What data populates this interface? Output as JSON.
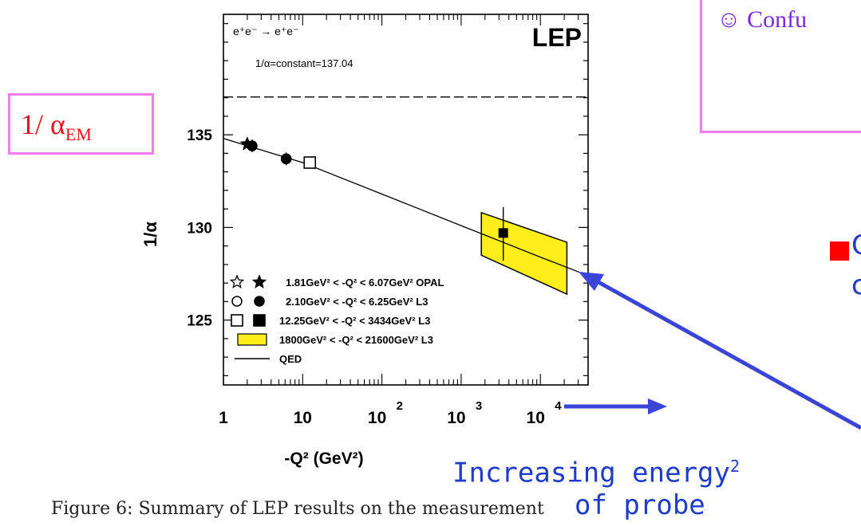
{
  "chart_data": {
    "type": "scatter",
    "title": "",
    "process_label": "e⁺e⁻ → e⁺e⁻",
    "experiment_label": "LEP",
    "xlabel": "-Q² (GeV²)",
    "ylabel": "1/α",
    "x_scale": "log",
    "xlim": [
      1,
      40000
    ],
    "ylim": [
      121.5,
      141.5
    ],
    "x_ticks": [
      {
        "value": 1,
        "label": "1"
      },
      {
        "value": 10,
        "label": "10"
      },
      {
        "value": 100,
        "label": "10",
        "exp": "2"
      },
      {
        "value": 1000,
        "label": "10",
        "exp": "3"
      },
      {
        "value": 10000,
        "label": "10",
        "exp": "4"
      }
    ],
    "y_ticks": [
      125,
      130,
      135
    ],
    "constant_line": {
      "value": 137.04,
      "label": "1/α=constant=137.04"
    },
    "qed_curve": {
      "name": "QED",
      "x": [
        1,
        10,
        100,
        1000,
        10000,
        40000
      ],
      "y": [
        134.8,
        133.5,
        131.8,
        130.1,
        128.4,
        127.4
      ]
    },
    "series": [
      {
        "name": "1.81GeV² < -Q² < 6.07GeV² OPAL",
        "marker": "star",
        "points": [
          {
            "x": 2.0,
            "y": 134.5
          }
        ]
      },
      {
        "name": "2.10GeV² < -Q² < 6.25GeV² L3",
        "marker": "circle",
        "points": [
          {
            "x": 2.3,
            "y": 134.4
          },
          {
            "x": 6.2,
            "y": 133.7
          }
        ]
      },
      {
        "name": "12.25GeV² < -Q² < 3434GeV² L3",
        "marker": "square",
        "points": [
          {
            "x": 12.3,
            "y": 133.5
          }
        ]
      },
      {
        "name": "1800GeV² < -Q² < 21600GeV² L3",
        "marker": "band",
        "points": [
          {
            "x": 3400,
            "y": 129.7
          }
        ]
      }
    ],
    "band": {
      "x_low": 1800,
      "x_high": 21600,
      "left_y": [
        128.5,
        130.8
      ],
      "right_y": [
        126.4,
        129.2
      ],
      "color": "#ffee1a"
    },
    "legend": [
      {
        "open": "star",
        "filled": "star",
        "text": "1.81GeV² < -Q² < 6.07GeV² OPAL"
      },
      {
        "open": "circle",
        "filled": "circle",
        "text": "2.10GeV² < -Q² < 6.25GeV² L3"
      },
      {
        "open": "square",
        "filled": "square",
        "text": "12.25GeV² < -Q² < 3434GeV² L3"
      },
      {
        "open": "band",
        "text": "1800GeV² < -Q² < 21600GeV² L3"
      },
      {
        "open": "line",
        "text": "QED"
      }
    ],
    "legend_position": "bottom-left"
  },
  "slide": {
    "alpha_label": "1/ α",
    "alpha_sub": "EM",
    "confusing_text": "☺ Confu",
    "fragment_1": "C",
    "fragment_2": "c",
    "annotation_line1": "Increasing energy",
    "annotation_sup": "2",
    "annotation_line2": "of probe",
    "caption": "Figure 6: Summary of LEP results on the measurement"
  },
  "colors": {
    "pink_border": "#f07cf0",
    "alpha_red": "#e8101a",
    "annotation_blue": "#1e3cc8",
    "arrow_blue": "#3a45d8",
    "band_yellow": "#ffee1a",
    "bullet_red": "#ff0000"
  }
}
